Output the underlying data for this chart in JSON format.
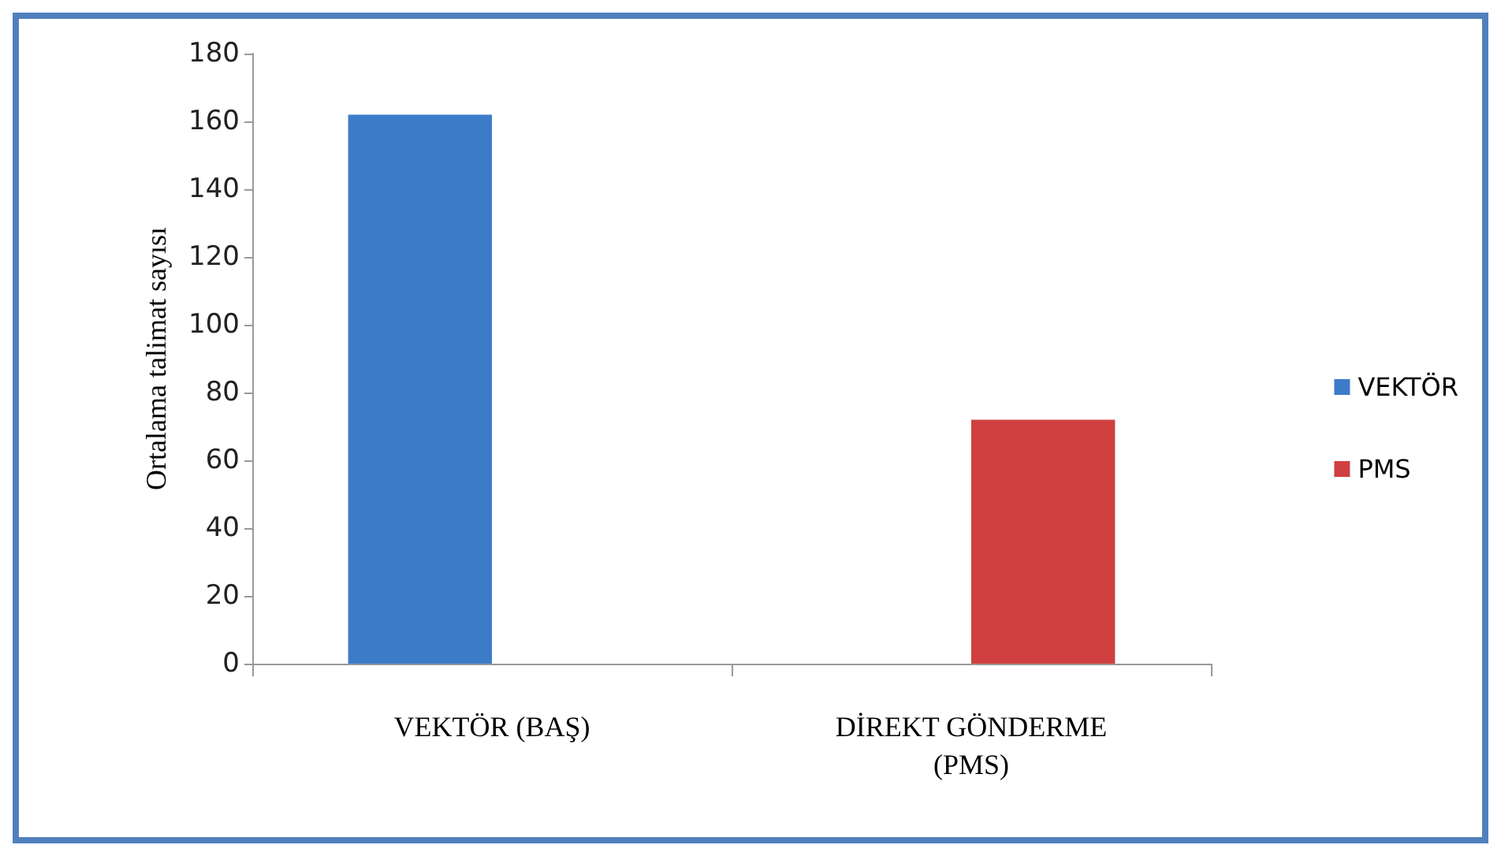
{
  "chart_data": {
    "type": "bar",
    "ylabel": "Ortalama talimat sayısı",
    "categories": [
      "VEKTÖR (BAŞ)",
      "DİREKT GÖNDERME\n(PMS)"
    ],
    "series": [
      {
        "name": "VEKTÖR",
        "color": "#3d7cc9",
        "values": [
          162,
          null
        ]
      },
      {
        "name": "PMS",
        "color": "#d04040",
        "values": [
          null,
          72
        ]
      }
    ],
    "ylim": [
      0,
      180
    ],
    "yticks": [
      0,
      20,
      40,
      60,
      80,
      100,
      120,
      140,
      160,
      180
    ],
    "grid": false,
    "legend": "right"
  }
}
